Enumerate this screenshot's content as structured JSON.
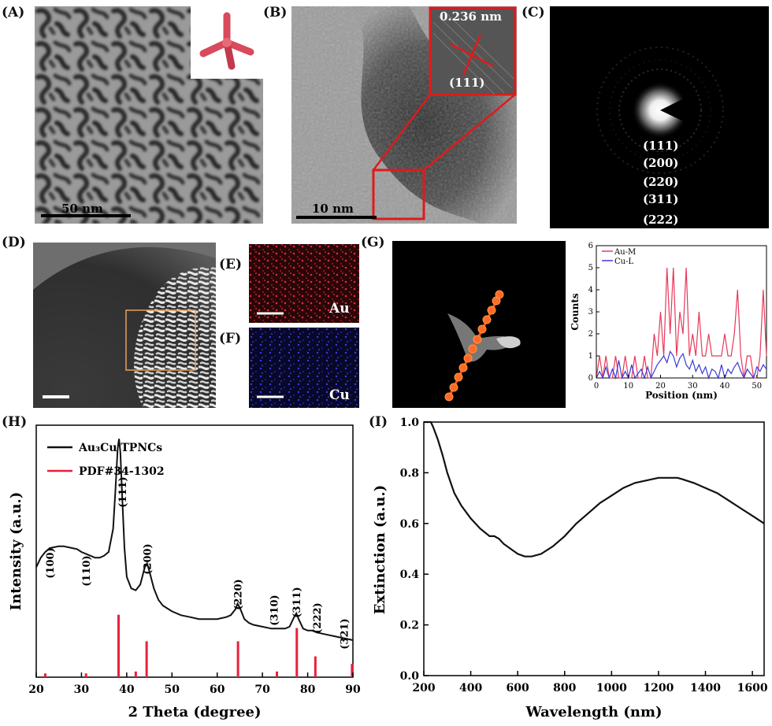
{
  "panels": {
    "A": {
      "label": "(A)",
      "scale": "50 nm"
    },
    "B": {
      "label": "(B)",
      "scale": "10 nm",
      "spacing": "0.236 nm",
      "plane": "(111)"
    },
    "C": {
      "label": "(C)",
      "rings": [
        "(111)",
        "(200)",
        "(220)",
        "(311)",
        "(222)"
      ]
    },
    "D": {
      "label": "(D)"
    },
    "E": {
      "label": "(E)",
      "element": "Au"
    },
    "F": {
      "label": "(F)",
      "element": "Cu"
    },
    "G": {
      "label": "(G)"
    },
    "H": {
      "label": "(H)"
    },
    "I": {
      "label": "(I)"
    }
  },
  "colors": {
    "au": "#e8385a",
    "cu": "#3a3ad6",
    "pdf": "#e8203a",
    "line": "#111111"
  },
  "chart_data": [
    {
      "type": "line",
      "panel": "G",
      "title": "",
      "xlabel": "Position (nm)",
      "ylabel": "Counts",
      "xlim": [
        0,
        53
      ],
      "ylim": [
        0,
        6
      ],
      "xticks": [
        0,
        10,
        20,
        30,
        40,
        50
      ],
      "yticks": [
        0,
        1,
        2,
        3,
        4,
        5,
        6
      ],
      "legend": "top-left",
      "series": [
        {
          "name": "Au-M",
          "color": "#e8385a",
          "x": [
            0,
            1,
            2,
            3,
            4,
            5,
            6,
            7,
            8,
            9,
            10,
            11,
            12,
            13,
            14,
            15,
            16,
            17,
            18,
            19,
            20,
            21,
            22,
            23,
            24,
            25,
            26,
            27,
            28,
            29,
            30,
            31,
            32,
            33,
            34,
            35,
            36,
            37,
            38,
            39,
            40,
            41,
            42,
            43,
            44,
            45,
            46,
            47,
            48,
            49,
            50,
            51,
            52,
            53
          ],
          "values": [
            0,
            1,
            0,
            1,
            0,
            0,
            1,
            0,
            0,
            1,
            0,
            0,
            1,
            0,
            0,
            1,
            0,
            0,
            2,
            1,
            3,
            1,
            5,
            2,
            5,
            1,
            3,
            2,
            5,
            1,
            2,
            1,
            3,
            1,
            1,
            2,
            1,
            1,
            1,
            1,
            2,
            1,
            1,
            2,
            4,
            1,
            0,
            1,
            1,
            0,
            0,
            1,
            4,
            1
          ]
        },
        {
          "name": "Cu-L",
          "color": "#3a3ad6",
          "x": [
            0,
            1,
            2,
            3,
            4,
            5,
            6,
            7,
            8,
            9,
            10,
            11,
            12,
            13,
            14,
            15,
            16,
            17,
            18,
            19,
            20,
            21,
            22,
            23,
            24,
            25,
            26,
            27,
            28,
            29,
            30,
            31,
            32,
            33,
            34,
            35,
            36,
            37,
            38,
            39,
            40,
            41,
            42,
            43,
            44,
            45,
            46,
            47,
            48,
            49,
            50,
            51,
            52,
            53
          ],
          "values": [
            0,
            0.3,
            0,
            0.5,
            0,
            0.4,
            0,
            0.8,
            0,
            0.3,
            0,
            0.6,
            0,
            0.2,
            0.4,
            0,
            0.5,
            0,
            0.3,
            0.6,
            0.8,
            1.0,
            0.7,
            1.2,
            1.0,
            0.5,
            0.9,
            1.1,
            0.6,
            0.4,
            0.8,
            0.3,
            0.6,
            0.2,
            0.5,
            0,
            0.4,
            0.3,
            0,
            0.6,
            0,
            0.4,
            0.2,
            0.5,
            0.7,
            0.3,
            0,
            0.4,
            0.2,
            0,
            0.5,
            0.3,
            0.6,
            0.4
          ]
        }
      ]
    },
    {
      "type": "line",
      "panel": "H",
      "title": "",
      "xlabel": "2 Theta (degree)",
      "ylabel": "Intensity (a.u.)",
      "xlim": [
        20,
        90
      ],
      "xticks": [
        20,
        30,
        40,
        50,
        60,
        70,
        80,
        90
      ],
      "legend": "top-left",
      "series": [
        {
          "name": "Au₃Cu TPNCs",
          "color": "#111111",
          "x": [
            20,
            21,
            22,
            23,
            24,
            25,
            26,
            27,
            28,
            29,
            30,
            31,
            32,
            33,
            34,
            35,
            36,
            37,
            37.5,
            38,
            38.3,
            38.6,
            39,
            39.5,
            40,
            41,
            42,
            43,
            44,
            44.5,
            45,
            46,
            47,
            48,
            50,
            52,
            54,
            56,
            58,
            60,
            62,
            63,
            64,
            64.5,
            65,
            65.5,
            66,
            67,
            68,
            70,
            72,
            74,
            75,
            76,
            77,
            77.5,
            78,
            79,
            80,
            81,
            82,
            84,
            86,
            88,
            90
          ],
          "values": [
            0.45,
            0.5,
            0.53,
            0.55,
            0.555,
            0.56,
            0.56,
            0.555,
            0.55,
            0.545,
            0.53,
            0.52,
            0.51,
            0.5,
            0.5,
            0.51,
            0.53,
            0.65,
            0.85,
            1.07,
            1.12,
            1.05,
            0.82,
            0.55,
            0.4,
            0.34,
            0.33,
            0.36,
            0.45,
            0.47,
            0.43,
            0.34,
            0.28,
            0.25,
            0.22,
            0.2,
            0.19,
            0.18,
            0.18,
            0.18,
            0.19,
            0.2,
            0.23,
            0.26,
            0.24,
            0.21,
            0.18,
            0.16,
            0.15,
            0.14,
            0.13,
            0.13,
            0.13,
            0.14,
            0.19,
            0.21,
            0.18,
            0.13,
            0.12,
            0.12,
            0.11,
            0.1,
            0.09,
            0.08,
            0.07
          ]
        },
        {
          "name": "PDF#34-1302",
          "color": "#e8203a",
          "type": "stick",
          "x": [
            22,
            31,
            38.2,
            42,
            44.4,
            64.6,
            73.2,
            77.6,
            81.7,
            89.8
          ],
          "values": [
            0.02,
            0.02,
            0.33,
            0.03,
            0.19,
            0.19,
            0.03,
            0.26,
            0.11,
            0.07
          ]
        }
      ],
      "peak_labels": [
        {
          "text": "(100)",
          "x": 23
        },
        {
          "text": "(110)",
          "x": 31
        },
        {
          "text": "(111)",
          "x": 39
        },
        {
          "text": "(200)",
          "x": 44.5
        },
        {
          "text": "(220)",
          "x": 64.5
        },
        {
          "text": "(310)",
          "x": 72.5
        },
        {
          "text": "(311)",
          "x": 77.5
        },
        {
          "text": "(222)",
          "x": 82
        },
        {
          "text": "(321)",
          "x": 88
        }
      ]
    },
    {
      "type": "line",
      "panel": "I",
      "title": "",
      "xlabel": "Wavelength (nm)",
      "ylabel": "Extinction (a.u.)",
      "xlim": [
        200,
        1650
      ],
      "ylim": [
        0,
        1.0
      ],
      "xticks": [
        200,
        400,
        600,
        800,
        1000,
        1200,
        1400,
        1600
      ],
      "yticks": [
        0.0,
        0.2,
        0.4,
        0.6,
        0.8,
        1.0
      ],
      "series": [
        {
          "name": "",
          "color": "#111111",
          "x": [
            200,
            210,
            220,
            230,
            240,
            260,
            280,
            300,
            330,
            360,
            400,
            440,
            480,
            500,
            520,
            540,
            570,
            600,
            630,
            660,
            700,
            750,
            800,
            850,
            900,
            950,
            1000,
            1050,
            1100,
            1150,
            1200,
            1250,
            1280,
            1300,
            1350,
            1400,
            1450,
            1500,
            1550,
            1600,
            1650
          ],
          "values": [
            1.0,
            1.05,
            1.02,
            1.0,
            0.98,
            0.93,
            0.87,
            0.8,
            0.72,
            0.67,
            0.62,
            0.58,
            0.55,
            0.55,
            0.54,
            0.52,
            0.5,
            0.48,
            0.47,
            0.47,
            0.48,
            0.51,
            0.55,
            0.6,
            0.64,
            0.68,
            0.71,
            0.74,
            0.76,
            0.77,
            0.78,
            0.78,
            0.78,
            0.775,
            0.76,
            0.74,
            0.72,
            0.69,
            0.66,
            0.63,
            0.6
          ]
        }
      ]
    }
  ],
  "tick_texts": {
    "G_x": [
      "0",
      "10",
      "20",
      "30",
      "40",
      "50"
    ],
    "G_y": [
      "0",
      "1",
      "2",
      "3",
      "4",
      "5",
      "6"
    ],
    "H_x": [
      "20",
      "30",
      "40",
      "50",
      "60",
      "70",
      "80",
      "90"
    ],
    "I_x": [
      "200",
      "400",
      "600",
      "800",
      "1000",
      "1200",
      "1400",
      "1600"
    ],
    "I_y": [
      "0.0",
      "0.2",
      "0.4",
      "0.6",
      "0.8",
      "1.0"
    ]
  }
}
